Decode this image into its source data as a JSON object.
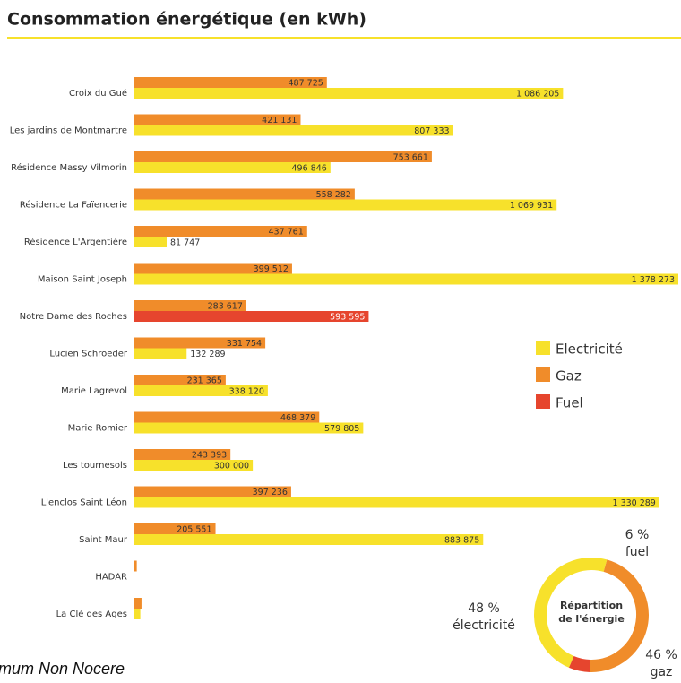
{
  "title": "Consommation énergétique (en kWh)",
  "footer": "mum Non Nocere",
  "chart_data": [
    {
      "type": "hbar",
      "categories": [
        "Croix du Gué",
        "Les jardins de Montmartre",
        "Résidence Massy Vilmorin",
        "Résidence La Faïencerie",
        "Résidence L'Argentière",
        "Maison Saint Joseph",
        "Notre Dame des Roches",
        "Lucien Schroeder",
        "Marie Lagrevol",
        "Marie Romier",
        "Les tournesols",
        "L'enclos Saint Léon",
        "Saint Maur",
        "HADAR",
        "La Clé des Ages"
      ],
      "series": [
        {
          "name": "Electricité",
          "color": "#f7e12b",
          "values": [
            1086205,
            807333,
            496846,
            1069931,
            81747,
            1378273,
            null,
            132289,
            338120,
            579805,
            300000,
            1330289,
            883875,
            null,
            15000
          ],
          "value_labels": [
            "1 086 205",
            "807 333",
            "496 846",
            "1 069 931",
            "81 747",
            "1 378 273",
            null,
            "132 289",
            "338 120",
            "579 805",
            "300 000",
            "1 330 289",
            "883 875",
            null,
            null
          ]
        },
        {
          "name": "Gaz",
          "color": "#f08c2a",
          "values": [
            487725,
            421131,
            753661,
            558282,
            437761,
            399512,
            283617,
            331754,
            231365,
            468379,
            243393,
            397236,
            205551,
            6000,
            18000
          ],
          "value_labels": [
            "487 725",
            "421 131",
            "753 661",
            "558 282",
            "437 761",
            "399 512",
            "283 617",
            "331 754",
            "231 365",
            "468 379",
            "243 393",
            "397 236",
            "205 551",
            null,
            null
          ]
        },
        {
          "name": "Fuel",
          "color": "#e6452e",
          "values": [
            null,
            null,
            null,
            null,
            null,
            null,
            593595,
            null,
            null,
            null,
            null,
            null,
            null,
            null,
            null
          ],
          "value_labels": [
            null,
            null,
            null,
            null,
            null,
            null,
            "593 595",
            null,
            null,
            null,
            null,
            null,
            null,
            null,
            null
          ]
        }
      ]
    },
    {
      "type": "donut",
      "title": "Répartition de l'énergie",
      "categories": [
        "électricité",
        "gaz",
        "fuel"
      ],
      "values": [
        48,
        46,
        6
      ],
      "value_labels": [
        "48 %",
        "46 %",
        "6 %"
      ],
      "colors": [
        "#f7e12b",
        "#f08c2a",
        "#e6452e"
      ]
    }
  ]
}
